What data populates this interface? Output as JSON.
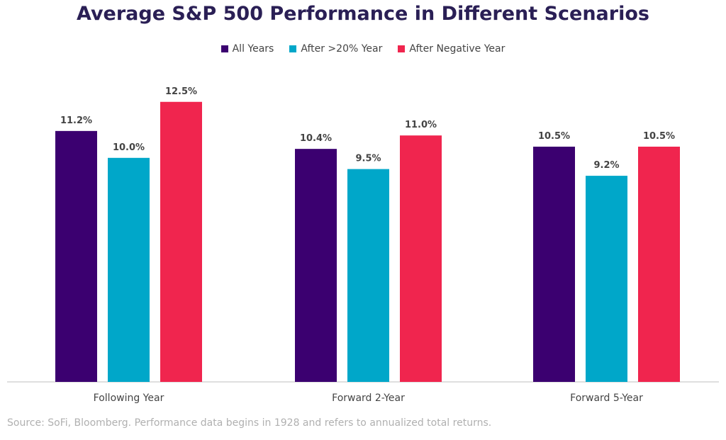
{
  "colors": {
    "title": "#2a1f55",
    "axis": "#bfbfbf",
    "text": "#444444",
    "source": "#b0b0b0"
  },
  "source": "Source: SoFi, Bloomberg. Performance data begins in 1928 and refers to annualized total returns.",
  "chart_data": {
    "type": "bar",
    "title": "Average S&P 500 Performance in Different Scenarios",
    "categories": [
      "Following Year",
      "Forward 2-Year",
      "Forward 5-Year"
    ],
    "series": [
      {
        "name": "All Years",
        "color": "#3b0070",
        "values": [
          11.2,
          10.4,
          10.5
        ],
        "labels": [
          "11.2%",
          "10.4%",
          "10.5%"
        ]
      },
      {
        "name": "After >20% Year",
        "color": "#00a7c9",
        "values": [
          10.0,
          9.5,
          9.2
        ],
        "labels": [
          "10.0%",
          "9.5%",
          "9.2%"
        ]
      },
      {
        "name": "After Negative Year",
        "color": "#f0254e",
        "values": [
          12.5,
          11.0,
          10.5
        ],
        "labels": [
          "12.5%",
          "11.0%",
          "10.5%"
        ]
      }
    ],
    "ylim": [
      0,
      14.2
    ],
    "grid": false,
    "legend": "top-center",
    "xlabel": "",
    "ylabel": ""
  }
}
